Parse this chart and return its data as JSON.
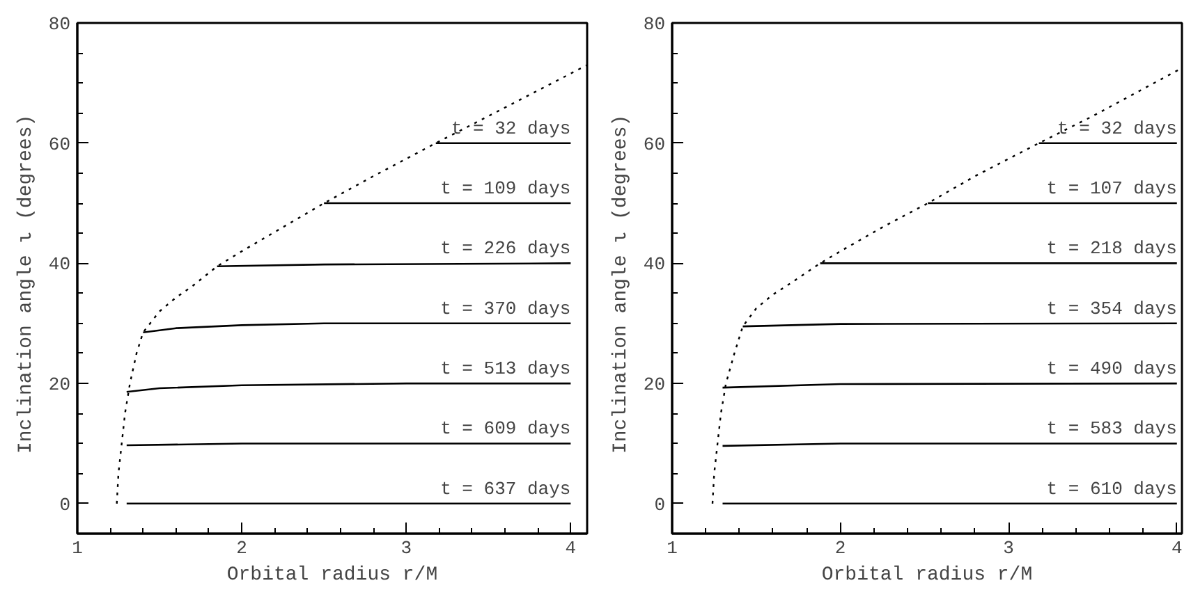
{
  "chart_data": [
    {
      "type": "line",
      "xlabel": "Orbital radius r/M",
      "ylabel": "Inclination angle ι  (degrees)",
      "xlim": [
        1,
        4.1
      ],
      "ylim": [
        -5,
        80
      ],
      "xticks": [
        1,
        {
          "value": 1.2,
          "label": null
        },
        {
          "value": 1.4,
          "label": null
        },
        {
          "value": 1.6,
          "label": null
        },
        {
          "value": 1.8,
          "label": null
        },
        2,
        {
          "value": 2.2,
          "label": null
        },
        {
          "value": 2.4,
          "label": null
        },
        {
          "value": 2.6,
          "label": null
        },
        {
          "value": 2.8,
          "label": null
        },
        3,
        {
          "value": 3.2,
          "label": null
        },
        {
          "value": 3.4,
          "label": null
        },
        {
          "value": 3.6,
          "label": null
        },
        {
          "value": 3.8,
          "label": null
        },
        4
      ],
      "yticks": [
        {
          "value": -5,
          "label": null
        },
        0,
        {
          "value": 5,
          "label": null
        },
        {
          "value": 10,
          "label": null
        },
        {
          "value": 15,
          "label": null
        },
        20,
        {
          "value": 25,
          "label": null
        },
        {
          "value": 30,
          "label": null
        },
        {
          "value": 35,
          "label": null
        },
        40,
        {
          "value": 45,
          "label": null
        },
        {
          "value": 50,
          "label": null
        },
        {
          "value": 55,
          "label": null
        },
        60,
        {
          "value": 65,
          "label": null
        },
        {
          "value": 70,
          "label": null
        },
        {
          "value": 75,
          "label": null
        },
        80
      ],
      "series": [
        {
          "color": "#000000",
          "line_style": "dotted",
          "x": [
            1.24,
            1.25,
            1.27,
            1.29,
            1.32,
            1.36,
            1.4,
            1.5,
            1.6,
            1.7,
            1.85,
            2,
            2.25,
            2.5,
            2.8,
            3.18,
            3.5,
            4.1
          ],
          "values": [
            0,
            5,
            10,
            15,
            20,
            25,
            28.5,
            32,
            34.3,
            36.2,
            39.5,
            42,
            46,
            50,
            54.5,
            60,
            64.5,
            73
          ]
        },
        {
          "name": "t = 32 days",
          "color": "#000000",
          "x": [
            3.18,
            4
          ],
          "values": [
            60,
            60
          ]
        },
        {
          "name": "t = 109 days",
          "color": "#000000",
          "x": [
            2.5,
            4
          ],
          "values": [
            50,
            50
          ]
        },
        {
          "name": "t = 226 days",
          "color": "#000000",
          "x": [
            1.85,
            2.5,
            4
          ],
          "values": [
            39.5,
            39.8,
            40
          ]
        },
        {
          "name": "t = 370 days",
          "color": "#000000",
          "x": [
            1.4,
            1.6,
            2,
            2.5,
            4
          ],
          "values": [
            28.5,
            29.2,
            29.7,
            30,
            30
          ]
        },
        {
          "name": "t = 513 days",
          "color": "#000000",
          "x": [
            1.3,
            1.5,
            2,
            3,
            4
          ],
          "values": [
            18.6,
            19.2,
            19.7,
            20,
            20
          ]
        },
        {
          "name": "t = 609 days",
          "color": "#000000",
          "x": [
            1.3,
            2,
            4
          ],
          "values": [
            9.7,
            10,
            10
          ]
        },
        {
          "name": "t = 637 days",
          "color": "#000000",
          "x": [
            1.3,
            4
          ],
          "values": [
            0,
            0
          ]
        }
      ]
    },
    {
      "type": "line",
      "xlabel": "Orbital radius r/M",
      "ylabel": "Inclination angle ι  (degrees)",
      "xlim": [
        1,
        4.03
      ],
      "ylim": [
        -5,
        80
      ],
      "xticks": [
        1,
        {
          "value": 1.2,
          "label": null
        },
        {
          "value": 1.4,
          "label": null
        },
        {
          "value": 1.6,
          "label": null
        },
        {
          "value": 1.8,
          "label": null
        },
        2,
        {
          "value": 2.2,
          "label": null
        },
        {
          "value": 2.4,
          "label": null
        },
        {
          "value": 2.6,
          "label": null
        },
        {
          "value": 2.8,
          "label": null
        },
        3,
        {
          "value": 3.2,
          "label": null
        },
        {
          "value": 3.4,
          "label": null
        },
        {
          "value": 3.6,
          "label": null
        },
        {
          "value": 3.8,
          "label": null
        },
        4
      ],
      "yticks": [
        {
          "value": -5,
          "label": null
        },
        0,
        {
          "value": 5,
          "label": null
        },
        {
          "value": 10,
          "label": null
        },
        {
          "value": 15,
          "label": null
        },
        20,
        {
          "value": 25,
          "label": null
        },
        {
          "value": 30,
          "label": null
        },
        {
          "value": 35,
          "label": null
        },
        40,
        {
          "value": 45,
          "label": null
        },
        {
          "value": 50,
          "label": null
        },
        {
          "value": 55,
          "label": null
        },
        60,
        {
          "value": 65,
          "label": null
        },
        {
          "value": 70,
          "label": null
        },
        {
          "value": 75,
          "label": null
        },
        80
      ],
      "series": [
        {
          "color": "#000000",
          "line_style": "dotted",
          "x": [
            1.24,
            1.25,
            1.27,
            1.29,
            1.32,
            1.37,
            1.42,
            1.5,
            1.6,
            1.7,
            1.88,
            2,
            2.25,
            2.52,
            2.8,
            3.18,
            3.5,
            4.03
          ],
          "values": [
            0,
            5,
            10,
            15,
            20,
            25,
            29.5,
            32.5,
            34.8,
            36.6,
            40,
            42,
            46,
            50,
            54.5,
            60,
            64.5,
            72.5
          ]
        },
        {
          "name": "t = 32 days",
          "color": "#000000",
          "x": [
            3.18,
            4
          ],
          "values": [
            60,
            60
          ]
        },
        {
          "name": "t = 107 days",
          "color": "#000000",
          "x": [
            2.52,
            4
          ],
          "values": [
            50,
            50
          ]
        },
        {
          "name": "t = 218 days",
          "color": "#000000",
          "x": [
            1.88,
            4
          ],
          "values": [
            40,
            40
          ]
        },
        {
          "name": "t = 354 days",
          "color": "#000000",
          "x": [
            1.42,
            2,
            4
          ],
          "values": [
            29.5,
            29.9,
            30
          ]
        },
        {
          "name": "t = 490 days",
          "color": "#000000",
          "x": [
            1.3,
            2,
            4
          ],
          "values": [
            19.3,
            19.9,
            20
          ]
        },
        {
          "name": "t = 583 days",
          "color": "#000000",
          "x": [
            1.3,
            2,
            4
          ],
          "values": [
            9.6,
            10,
            10
          ]
        },
        {
          "name": "t = 610 days",
          "color": "#000000",
          "x": [
            1.3,
            4
          ],
          "values": [
            0,
            0
          ]
        }
      ]
    }
  ]
}
